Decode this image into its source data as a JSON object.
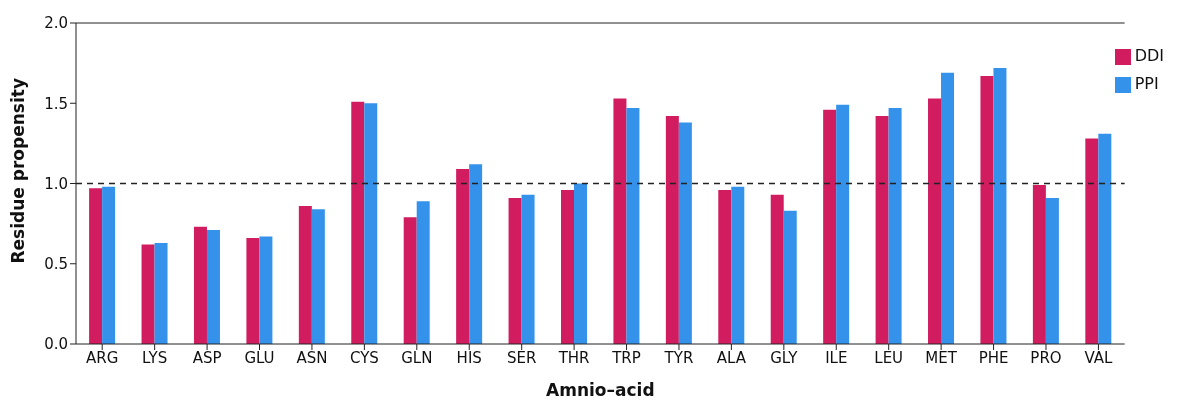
{
  "chart_data": {
    "type": "bar",
    "xlabel": "Amnio–acid",
    "ylabel": "Residue propensity",
    "categories": [
      "ARG",
      "LYS",
      "ASP",
      "GLU",
      "ASN",
      "CYS",
      "GLN",
      "HIS",
      "SER",
      "THR",
      "TRP",
      "TYR",
      "ALA",
      "GLY",
      "ILE",
      "LEU",
      "MET",
      "PHE",
      "PRO",
      "VAL"
    ],
    "series": [
      {
        "name": "DDI",
        "color": "#d11c5f",
        "values": [
          0.97,
          0.62,
          0.73,
          0.66,
          0.86,
          1.51,
          0.79,
          1.09,
          0.91,
          0.96,
          1.53,
          1.42,
          0.96,
          0.93,
          1.46,
          1.42,
          1.53,
          1.67,
          0.99,
          1.28
        ]
      },
      {
        "name": "PPI",
        "color": "#3592eb",
        "values": [
          0.98,
          0.63,
          0.71,
          0.67,
          0.84,
          1.5,
          0.89,
          1.12,
          0.93,
          1.0,
          1.47,
          1.38,
          0.98,
          0.83,
          1.49,
          1.47,
          1.69,
          1.72,
          0.91,
          1.31
        ]
      }
    ],
    "ylim": [
      0,
      2
    ],
    "yticks": [
      {
        "value": 0,
        "label": "0.0"
      },
      {
        "value": 0.5,
        "label": "0.5"
      },
      {
        "value": 1,
        "label": "1.0"
      },
      {
        "value": 1.5,
        "label": "1.5"
      },
      {
        "value": 2,
        "label": "2.0"
      }
    ],
    "ref_lines": [
      {
        "axis": "y",
        "value": 1,
        "line_style": "dashed",
        "color": "#222222"
      }
    ],
    "grid": false,
    "legend": "top right"
  }
}
